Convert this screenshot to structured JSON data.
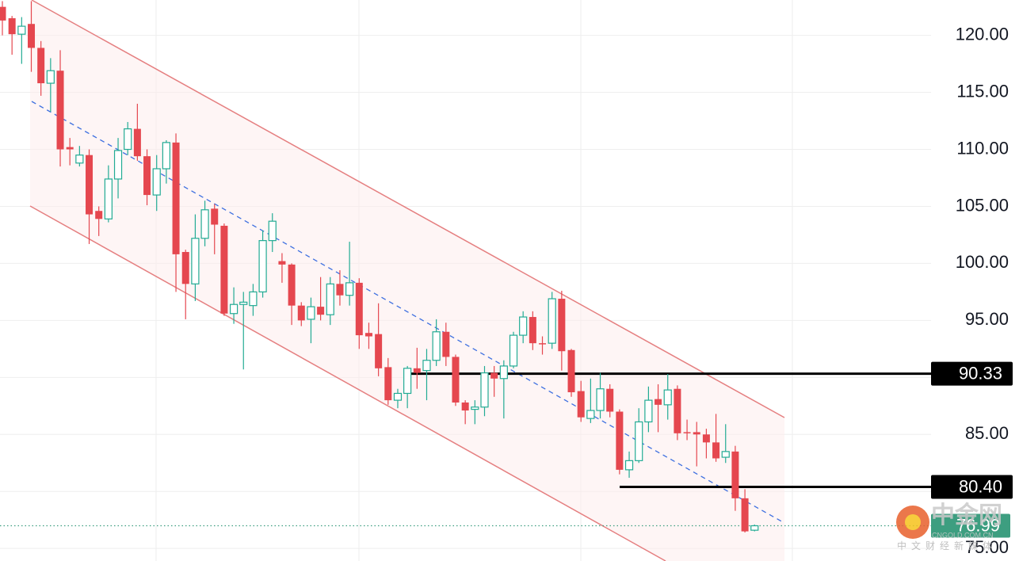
{
  "chart_data": {
    "type": "candlestick",
    "categories": [
      null,
      null,
      null,
      null,
      null,
      null,
      null,
      null,
      null,
      null,
      null,
      null,
      null,
      null,
      null,
      null,
      null,
      null,
      null,
      null,
      null,
      null,
      null,
      null,
      null,
      null,
      null,
      null,
      null,
      null,
      null,
      null,
      null,
      null,
      null,
      null,
      null,
      null,
      null,
      null,
      null,
      null,
      null,
      null,
      null,
      null,
      null,
      null,
      null,
      null,
      null,
      null,
      null,
      null,
      null,
      null,
      null,
      null,
      null,
      null,
      null,
      null,
      null,
      null,
      null,
      null,
      null,
      null,
      null,
      null,
      null,
      null,
      null,
      null,
      null,
      null,
      null,
      null,
      null
    ],
    "open": [
      122.5,
      121.5,
      120.1,
      121,
      118.9,
      115.8,
      116.9,
      110.2,
      108.8,
      109.5,
      104.6,
      103.9,
      107.4,
      110,
      111.8,
      109.4,
      106,
      108.3,
      110.6,
      101,
      98.2,
      102.2,
      104.8,
      103.3,
      95.6,
      96.4,
      96.3,
      97.5,
      102,
      100.2,
      99.9,
      96.3,
      95.1,
      96.2,
      95.5,
      98.2,
      97.2,
      98.3,
      93.9,
      93.8,
      90.9,
      88,
      88.6,
      90.8,
      90.6,
      91.5,
      94,
      91.8,
      87.8,
      87.2,
      87.4,
      90.4,
      89.9,
      91,
      93.7,
      95.3,
      93,
      93,
      96.9,
      92.4,
      88.8,
      86.4,
      87.1,
      89,
      87,
      81.9,
      82.7,
      86.1,
      88.1,
      87.6,
      89,
      85.2,
      85.2,
      85,
      84.3,
      83,
      83.5,
      79.4,
      76.6
    ],
    "high": [
      123,
      121.7,
      121.6,
      123,
      119.5,
      118,
      118.7,
      111,
      110.3,
      110,
      105,
      108.6,
      111,
      112.4,
      114,
      110,
      109.5,
      110.8,
      111.4,
      101.2,
      104.3,
      105.5,
      105.2,
      103.5,
      97.9,
      97.5,
      98.2,
      102.9,
      104.4,
      100.9,
      100,
      96.6,
      97,
      98.8,
      98.8,
      99.4,
      101.9,
      98.7,
      94.8,
      96.5,
      91.7,
      89,
      91,
      92.6,
      92.5,
      95.1,
      94.8,
      92,
      88,
      88,
      91,
      91,
      91.5,
      94,
      95.8,
      95.8,
      93.6,
      97.5,
      97.6,
      92.5,
      89.7,
      89.9,
      90.4,
      89.4,
      87.2,
      83.5,
      87.3,
      89.2,
      89.4,
      90.3,
      89.3,
      86.3,
      86.1,
      85.5,
      86.8,
      85.9,
      84,
      80.2,
      77.1
    ],
    "low": [
      120,
      118.3,
      117.5,
      116.8,
      114.7,
      113.3,
      108.5,
      108.6,
      108.5,
      101.7,
      102.4,
      103.6,
      105.7,
      109.5,
      109,
      105.1,
      104.6,
      107,
      97.5,
      95.1,
      96.7,
      101.5,
      100.8,
      95.4,
      94.7,
      90.7,
      95.4,
      97,
      101,
      98.3,
      94.6,
      94.5,
      93,
      95,
      94.6,
      96.3,
      96.3,
      92.5,
      92.5,
      90.1,
      87.6,
      87.3,
      87.3,
      89,
      88,
      91,
      91,
      87.5,
      85.9,
      85.9,
      86.6,
      88.3,
      86.4,
      90.8,
      93,
      92.4,
      92,
      92.5,
      90.6,
      88.3,
      86.1,
      86,
      86.4,
      86.5,
      81.5,
      81.2,
      82.5,
      85.2,
      85.2,
      86.3,
      84.5,
      84.5,
      82.2,
      82.9,
      82.6,
      82.5,
      78.3,
      76.4,
      76.5
    ],
    "close": [
      121.3,
      120.1,
      120.8,
      118.9,
      115.8,
      116.9,
      110,
      110,
      109.5,
      104.3,
      103.9,
      107.4,
      109.9,
      111.8,
      109.4,
      106,
      108.3,
      110.6,
      100.8,
      98.2,
      102.2,
      104.7,
      103.4,
      95.6,
      96.4,
      96.6,
      97.5,
      102,
      103.7,
      99.9,
      96.3,
      95,
      96.2,
      95.5,
      98.2,
      97.2,
      98.3,
      93.7,
      93.6,
      90.8,
      88,
      88.6,
      90.8,
      90.4,
      91.5,
      94,
      91.8,
      87.8,
      87.1,
      87.4,
      90.4,
      89.9,
      91,
      93.7,
      95.3,
      93,
      92.9,
      96.9,
      92.3,
      88.7,
      86.5,
      87.1,
      89,
      87,
      81.9,
      82.7,
      86.1,
      88,
      87.6,
      88.9,
      85.1,
      85.1,
      85,
      84.3,
      82.9,
      83.5,
      79.4,
      76.5,
      76.99
    ],
    "up_color": "#22ab94",
    "down_color": "#e5474f",
    "ylim": [
      73.9,
      123.1
    ],
    "yticks": [
      {
        "value": 75,
        "label": "75.00"
      },
      {
        "value": 80,
        "label": "80.00"
      },
      {
        "value": 85,
        "label": "85.00"
      },
      {
        "value": 90,
        "label": "90.00"
      },
      {
        "value": 95,
        "label": "95.00"
      },
      {
        "value": 100,
        "label": "100.00"
      },
      {
        "value": 105,
        "label": "105.00"
      },
      {
        "value": 110,
        "label": "110.00"
      },
      {
        "value": 115,
        "label": "115.00"
      },
      {
        "value": 120,
        "label": "120.00"
      }
    ],
    "grid": true,
    "levels": [
      {
        "value": 90.33
      },
      {
        "value": 80.4,
        "label": "80.40"
      }
    ],
    "level_color": "#000000",
    "last_price": 76.99,
    "last_color": "#3d9e80"
  },
  "watermark": {
    "name": "中金网",
    "domain": "CNGOLD.COM.CN",
    "slogan": "中文财经新媒体"
  }
}
